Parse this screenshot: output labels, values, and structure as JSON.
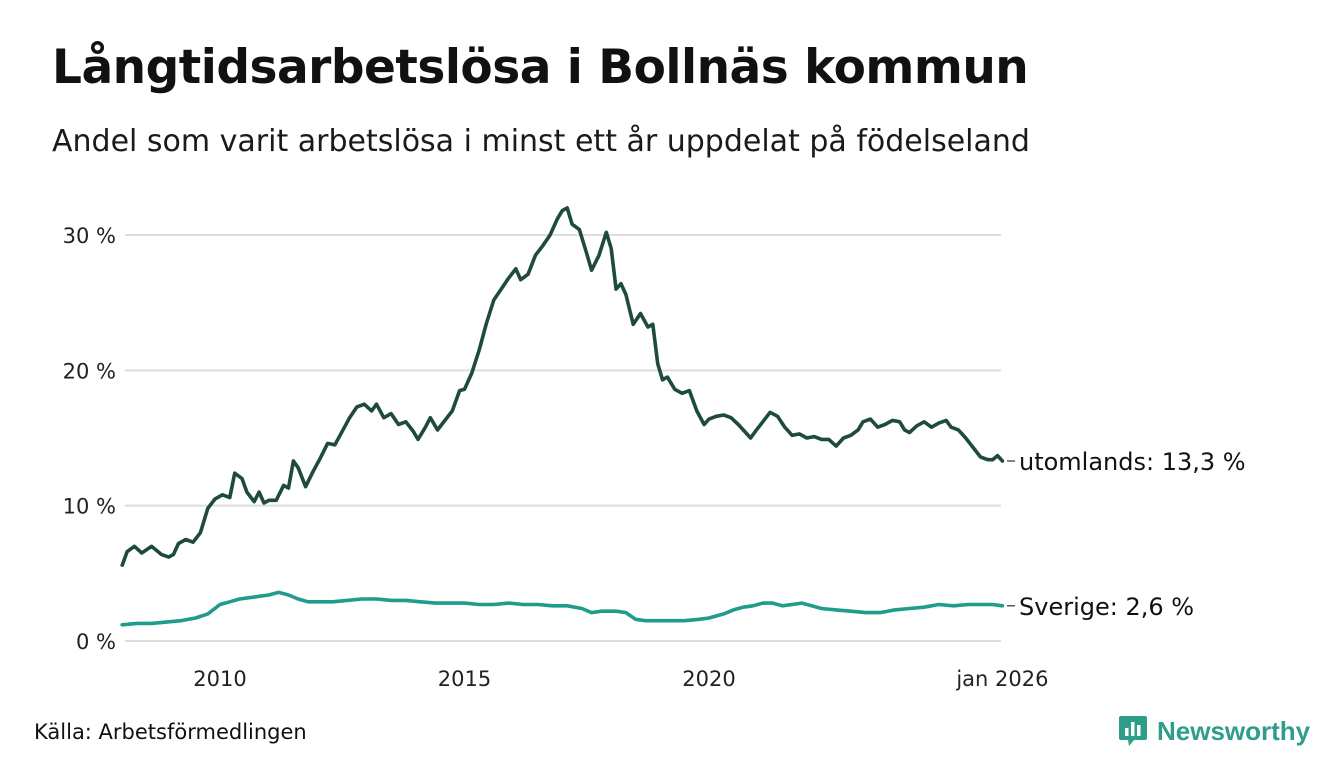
{
  "title": "Långtidsarbetslösa i Bollnäs kommun",
  "subtitle": "Andel som varit arbetslösa i minst ett år uppdelat på födelseland",
  "source": "Källa: Arbetsförmedlingen",
  "logo": {
    "text": "Newsworthy",
    "icon": "bar-chart-speech-icon"
  },
  "colors": {
    "utomlands": "#1f4a40",
    "sverige": "#1f9c8c",
    "grid": "#dddddd",
    "brand": "#2e9e8a"
  },
  "chart_data": {
    "type": "line",
    "ylim": [
      0,
      32
    ],
    "xlim": [
      2008.0,
      2026.1
    ],
    "y_ticks": [
      {
        "value": 0,
        "label": "0 %"
      },
      {
        "value": 10,
        "label": "10 %"
      },
      {
        "value": 20,
        "label": "20 %"
      },
      {
        "value": 30,
        "label": "30 %"
      }
    ],
    "x_ticks": [
      {
        "value": 2010,
        "label": "2010"
      },
      {
        "value": 2015,
        "label": "2015"
      },
      {
        "value": 2020,
        "label": "2020"
      },
      {
        "value": 2026,
        "label": "jan 2026"
      }
    ],
    "series": [
      {
        "name": "utomlands",
        "end_label": "utomlands: 13,3 %",
        "points": [
          [
            2008.0,
            5.6
          ],
          [
            2008.1,
            6.6
          ],
          [
            2008.25,
            7.0
          ],
          [
            2008.4,
            6.5
          ],
          [
            2008.6,
            7.0
          ],
          [
            2008.8,
            6.4
          ],
          [
            2008.95,
            6.2
          ],
          [
            2009.05,
            6.4
          ],
          [
            2009.15,
            7.2
          ],
          [
            2009.3,
            7.5
          ],
          [
            2009.45,
            7.3
          ],
          [
            2009.6,
            8.0
          ],
          [
            2009.75,
            9.8
          ],
          [
            2009.9,
            10.5
          ],
          [
            2010.05,
            10.8
          ],
          [
            2010.2,
            10.6
          ],
          [
            2010.3,
            12.4
          ],
          [
            2010.45,
            12.0
          ],
          [
            2010.55,
            11.0
          ],
          [
            2010.7,
            10.3
          ],
          [
            2010.8,
            11.0
          ],
          [
            2010.9,
            10.2
          ],
          [
            2011.0,
            10.4
          ],
          [
            2011.15,
            10.4
          ],
          [
            2011.3,
            11.5
          ],
          [
            2011.4,
            11.3
          ],
          [
            2011.5,
            13.3
          ],
          [
            2011.6,
            12.8
          ],
          [
            2011.75,
            11.4
          ],
          [
            2011.9,
            12.5
          ],
          [
            2012.05,
            13.5
          ],
          [
            2012.2,
            14.6
          ],
          [
            2012.35,
            14.5
          ],
          [
            2012.5,
            15.5
          ],
          [
            2012.65,
            16.5
          ],
          [
            2012.8,
            17.3
          ],
          [
            2012.95,
            17.5
          ],
          [
            2013.1,
            17.0
          ],
          [
            2013.2,
            17.5
          ],
          [
            2013.35,
            16.5
          ],
          [
            2013.5,
            16.8
          ],
          [
            2013.65,
            16.0
          ],
          [
            2013.8,
            16.2
          ],
          [
            2013.95,
            15.5
          ],
          [
            2014.05,
            14.9
          ],
          [
            2014.2,
            15.8
          ],
          [
            2014.3,
            16.5
          ],
          [
            2014.45,
            15.6
          ],
          [
            2014.6,
            16.3
          ],
          [
            2014.75,
            17.0
          ],
          [
            2014.9,
            18.5
          ],
          [
            2015.0,
            18.6
          ],
          [
            2015.15,
            19.8
          ],
          [
            2015.3,
            21.5
          ],
          [
            2015.45,
            23.5
          ],
          [
            2015.6,
            25.2
          ],
          [
            2015.75,
            26.0
          ],
          [
            2015.9,
            26.8
          ],
          [
            2016.05,
            27.5
          ],
          [
            2016.15,
            26.7
          ],
          [
            2016.3,
            27.1
          ],
          [
            2016.45,
            28.5
          ],
          [
            2016.6,
            29.2
          ],
          [
            2016.75,
            30.0
          ],
          [
            2016.9,
            31.2
          ],
          [
            2017.0,
            31.8
          ],
          [
            2017.1,
            32.0
          ],
          [
            2017.2,
            30.8
          ],
          [
            2017.35,
            30.4
          ],
          [
            2017.5,
            28.6
          ],
          [
            2017.6,
            27.4
          ],
          [
            2017.75,
            28.5
          ],
          [
            2017.9,
            30.2
          ],
          [
            2018.0,
            29.0
          ],
          [
            2018.1,
            26.0
          ],
          [
            2018.2,
            26.4
          ],
          [
            2018.3,
            25.6
          ],
          [
            2018.45,
            23.4
          ],
          [
            2018.6,
            24.2
          ],
          [
            2018.75,
            23.2
          ],
          [
            2018.85,
            23.4
          ],
          [
            2018.95,
            20.5
          ],
          [
            2019.05,
            19.3
          ],
          [
            2019.15,
            19.5
          ],
          [
            2019.3,
            18.6
          ],
          [
            2019.45,
            18.3
          ],
          [
            2019.6,
            18.5
          ],
          [
            2019.75,
            17.0
          ],
          [
            2019.9,
            16.0
          ],
          [
            2020.0,
            16.4
          ],
          [
            2020.15,
            16.6
          ],
          [
            2020.3,
            16.7
          ],
          [
            2020.45,
            16.5
          ],
          [
            2020.6,
            16.0
          ],
          [
            2020.75,
            15.4
          ],
          [
            2020.85,
            15.0
          ],
          [
            2020.95,
            15.5
          ],
          [
            2021.1,
            16.2
          ],
          [
            2021.25,
            16.9
          ],
          [
            2021.4,
            16.6
          ],
          [
            2021.55,
            15.8
          ],
          [
            2021.7,
            15.2
          ],
          [
            2021.85,
            15.3
          ],
          [
            2022.0,
            15.0
          ],
          [
            2022.15,
            15.1
          ],
          [
            2022.3,
            14.9
          ],
          [
            2022.45,
            14.9
          ],
          [
            2022.6,
            14.4
          ],
          [
            2022.75,
            15.0
          ],
          [
            2022.9,
            15.2
          ],
          [
            2023.05,
            15.6
          ],
          [
            2023.15,
            16.2
          ],
          [
            2023.3,
            16.4
          ],
          [
            2023.45,
            15.8
          ],
          [
            2023.6,
            16.0
          ],
          [
            2023.75,
            16.3
          ],
          [
            2023.9,
            16.2
          ],
          [
            2024.0,
            15.6
          ],
          [
            2024.1,
            15.4
          ],
          [
            2024.25,
            15.9
          ],
          [
            2024.4,
            16.2
          ],
          [
            2024.55,
            15.8
          ],
          [
            2024.7,
            16.1
          ],
          [
            2024.85,
            16.3
          ],
          [
            2024.95,
            15.8
          ],
          [
            2025.1,
            15.6
          ],
          [
            2025.25,
            15.0
          ],
          [
            2025.4,
            14.3
          ],
          [
            2025.55,
            13.6
          ],
          [
            2025.7,
            13.4
          ],
          [
            2025.8,
            13.4
          ],
          [
            2025.9,
            13.7
          ],
          [
            2026.0,
            13.3
          ]
        ]
      },
      {
        "name": "Sverige",
        "end_label": "Sverige:  2,6 %",
        "points": [
          [
            2008.0,
            1.2
          ],
          [
            2008.3,
            1.3
          ],
          [
            2008.6,
            1.3
          ],
          [
            2008.9,
            1.4
          ],
          [
            2009.2,
            1.5
          ],
          [
            2009.5,
            1.7
          ],
          [
            2009.75,
            2.0
          ],
          [
            2010.0,
            2.7
          ],
          [
            2010.2,
            2.9
          ],
          [
            2010.4,
            3.1
          ],
          [
            2010.6,
            3.2
          ],
          [
            2010.8,
            3.3
          ],
          [
            2011.0,
            3.4
          ],
          [
            2011.2,
            3.6
          ],
          [
            2011.4,
            3.4
          ],
          [
            2011.6,
            3.1
          ],
          [
            2011.8,
            2.9
          ],
          [
            2012.0,
            2.9
          ],
          [
            2012.3,
            2.9
          ],
          [
            2012.6,
            3.0
          ],
          [
            2012.9,
            3.1
          ],
          [
            2013.2,
            3.1
          ],
          [
            2013.5,
            3.0
          ],
          [
            2013.8,
            3.0
          ],
          [
            2014.1,
            2.9
          ],
          [
            2014.4,
            2.8
          ],
          [
            2014.7,
            2.8
          ],
          [
            2015.0,
            2.8
          ],
          [
            2015.3,
            2.7
          ],
          [
            2015.6,
            2.7
          ],
          [
            2015.9,
            2.8
          ],
          [
            2016.2,
            2.7
          ],
          [
            2016.5,
            2.7
          ],
          [
            2016.8,
            2.6
          ],
          [
            2017.1,
            2.6
          ],
          [
            2017.4,
            2.4
          ],
          [
            2017.6,
            2.1
          ],
          [
            2017.8,
            2.2
          ],
          [
            2018.1,
            2.2
          ],
          [
            2018.3,
            2.1
          ],
          [
            2018.5,
            1.6
          ],
          [
            2018.7,
            1.5
          ],
          [
            2018.9,
            1.5
          ],
          [
            2019.2,
            1.5
          ],
          [
            2019.5,
            1.5
          ],
          [
            2019.8,
            1.6
          ],
          [
            2020.0,
            1.7
          ],
          [
            2020.3,
            2.0
          ],
          [
            2020.5,
            2.3
          ],
          [
            2020.7,
            2.5
          ],
          [
            2020.9,
            2.6
          ],
          [
            2021.1,
            2.8
          ],
          [
            2021.3,
            2.8
          ],
          [
            2021.5,
            2.6
          ],
          [
            2021.7,
            2.7
          ],
          [
            2021.9,
            2.8
          ],
          [
            2022.1,
            2.6
          ],
          [
            2022.3,
            2.4
          ],
          [
            2022.6,
            2.3
          ],
          [
            2022.9,
            2.2
          ],
          [
            2023.2,
            2.1
          ],
          [
            2023.5,
            2.1
          ],
          [
            2023.8,
            2.3
          ],
          [
            2024.1,
            2.4
          ],
          [
            2024.4,
            2.5
          ],
          [
            2024.7,
            2.7
          ],
          [
            2025.0,
            2.6
          ],
          [
            2025.3,
            2.7
          ],
          [
            2025.6,
            2.7
          ],
          [
            2025.8,
            2.7
          ],
          [
            2026.0,
            2.6
          ]
        ]
      }
    ]
  }
}
